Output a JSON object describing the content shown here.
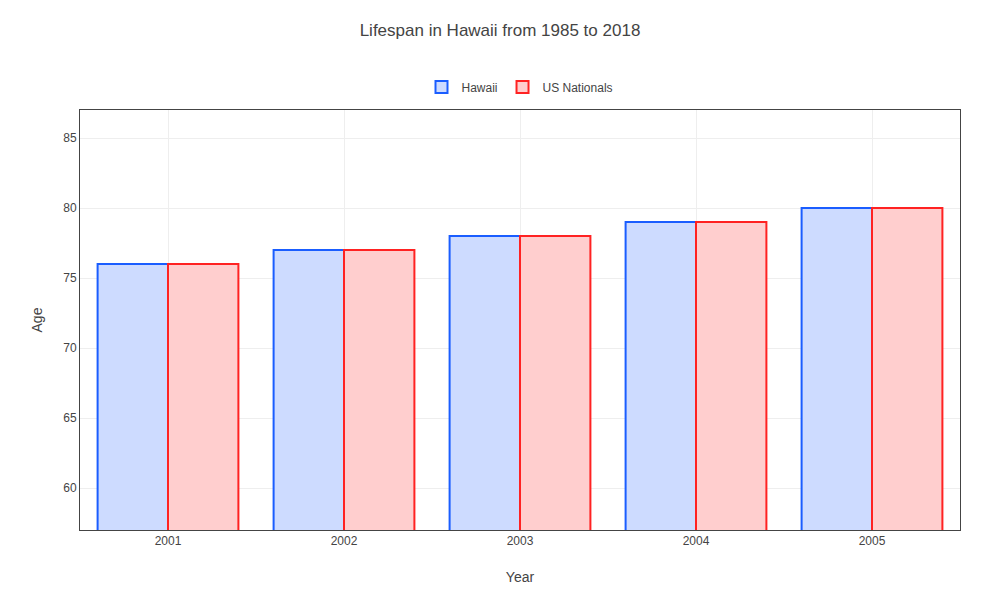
{
  "chart_data": {
    "type": "bar",
    "title": "Lifespan in Hawaii from 1985 to 2018",
    "x_label": "Year",
    "y_label": "Age",
    "categories": [
      "2001",
      "2002",
      "2003",
      "2004",
      "2005"
    ],
    "series": [
      {
        "name": "Hawaii",
        "color": "#1a5dff",
        "values": [
          76,
          77,
          78,
          79,
          80
        ]
      },
      {
        "name": "US Nationals",
        "color": "#ff2222",
        "values": [
          76,
          77,
          78,
          79,
          80
        ]
      }
    ],
    "ylim": [
      57,
      87
    ],
    "yticks": [
      60,
      65,
      70,
      75,
      80,
      85
    ],
    "grid": true,
    "legend": "top"
  }
}
